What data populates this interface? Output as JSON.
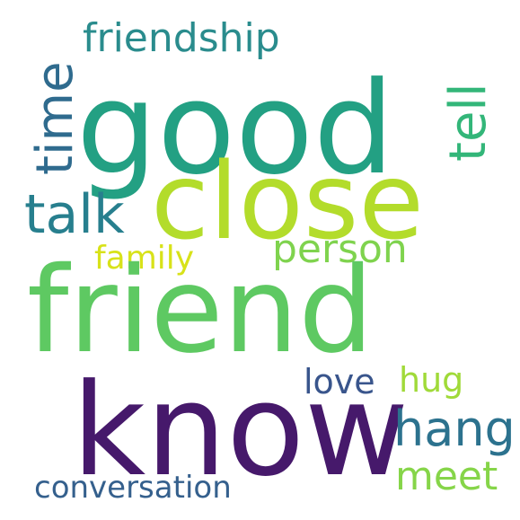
{
  "words": [
    {
      "id": "good",
      "text": "good",
      "color": "#23a083"
    },
    {
      "id": "close",
      "text": "close",
      "color": "#b3dc2b"
    },
    {
      "id": "friend",
      "text": "friend",
      "color": "#5ec962"
    },
    {
      "id": "know",
      "text": "know",
      "color": "#46196b"
    },
    {
      "id": "friendship",
      "text": "friendship",
      "color": "#2a8c8d"
    },
    {
      "id": "time",
      "text": "time",
      "color": "#2f6b8e"
    },
    {
      "id": "tell",
      "text": "tell",
      "color": "#33b679"
    },
    {
      "id": "talk",
      "text": "talk",
      "color": "#277f8e"
    },
    {
      "id": "person",
      "text": "person",
      "color": "#7fd34e"
    },
    {
      "id": "family",
      "text": "family",
      "color": "#d8e219"
    },
    {
      "id": "love",
      "text": "love",
      "color": "#39558c"
    },
    {
      "id": "hug",
      "text": "hug",
      "color": "#a0da39"
    },
    {
      "id": "hang",
      "text": "hang",
      "color": "#2c728e"
    },
    {
      "id": "meet",
      "text": "meet",
      "color": "#86d549"
    },
    {
      "id": "conversation",
      "text": "conversation",
      "color": "#35608d"
    }
  ]
}
